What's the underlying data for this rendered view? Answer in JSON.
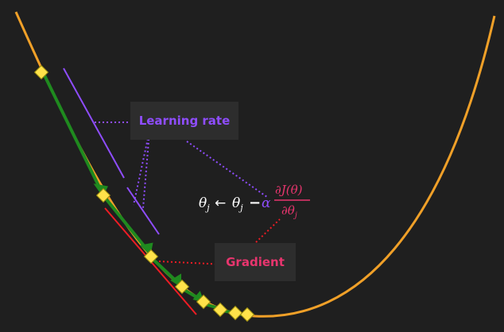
{
  "labels": {
    "learning_rate": "Learning rate",
    "gradient": "Gradient"
  },
  "equation": {
    "theta": "θ",
    "sub": "j",
    "arrow": "←",
    "minus": "−",
    "alpha": "α",
    "numerator": "∂J(θ)",
    "denominator_symbol": "∂θ"
  },
  "colors": {
    "background": "#1f1f1f",
    "curve": "#f0a028",
    "steps": "#1f8a1f",
    "markers": "#ffe24a",
    "learning_rate": "#8f4dff",
    "gradient": "#e8356e",
    "equation_text": "#ffffff"
  }
}
